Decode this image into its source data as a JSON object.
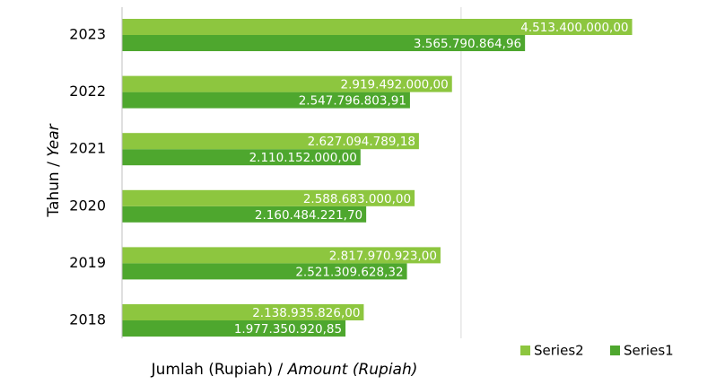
{
  "chart_data": {
    "type": "bar",
    "orientation": "horizontal",
    "ylabel_regular": "Tahun / ",
    "ylabel_italic": "Year",
    "xlabel_regular": "Jumlah (Rupiah) / ",
    "xlabel_italic": "Amount (Rupiah)",
    "categories": [
      "2018",
      "2019",
      "2020",
      "2021",
      "2022",
      "2023"
    ],
    "series": [
      {
        "name": "Series1",
        "color": "#4ea72e",
        "values": [
          1977350920.85,
          2521309628.32,
          2160484221.7,
          2110152000,
          2547796803.91,
          3565790864.96
        ],
        "value_labels": [
          "1.977.350.920,85",
          "2.521.309.628,32",
          "2.160.484.221,70",
          "2.110.152.000,00",
          "2.547.796.803,91",
          "3.565.790.864,96"
        ]
      },
      {
        "name": "Series2",
        "color": "#8dc63f",
        "values": [
          2138935826,
          2817970923,
          2588683000,
          2627094789.18,
          2919492000,
          4513400000
        ],
        "value_labels": [
          "2.138.935.826,00",
          "2.817.970.923,00",
          "2.588.683.000,00",
          "2.627.094.789,18",
          "2.919.492.000,00",
          "4.513.400.000,00"
        ]
      }
    ],
    "xlim": [
      0,
      5200000000
    ],
    "xticks": [
      0,
      3000000000
    ],
    "xtick_labels": false,
    "grid": true,
    "legend": "bottom-right"
  }
}
